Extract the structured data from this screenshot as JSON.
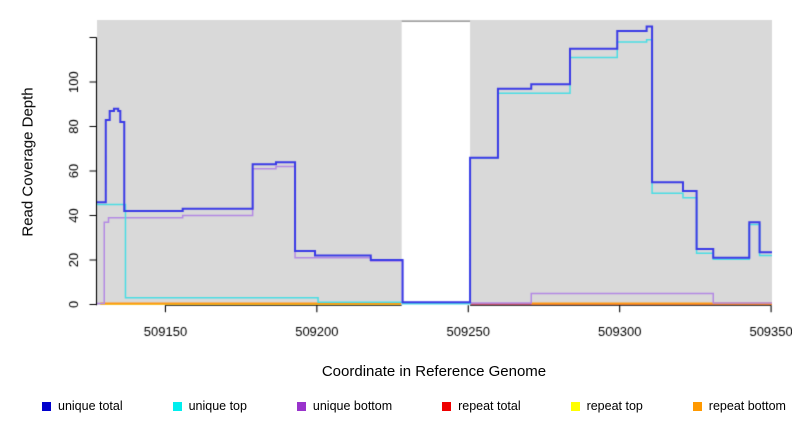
{
  "chart_data": {
    "type": "line",
    "subtype": "step-coverage",
    "title": "",
    "xlabel": "Coordinate in Reference Genome",
    "ylabel": "Read Coverage Depth",
    "x_range": [
      509127.4,
      509350.3
    ],
    "y_range": [
      0,
      127.9
    ],
    "x_ticks": [
      509150,
      509200,
      509250,
      509300,
      509350
    ],
    "x_tick_labels": [
      "509150",
      "509200",
      "509250",
      "509300",
      "509350"
    ],
    "y_ticks_labeled": [
      0,
      20,
      40,
      60,
      80,
      100
    ],
    "y_tick_labels": [
      "0",
      "20",
      "40",
      "60",
      "80",
      "100"
    ],
    "y_ticks_unlabeled": [
      120
    ],
    "grid": false,
    "plot_background": "#d9d9d9",
    "masked_gap": {
      "x_start": 509228.0,
      "x_end": 509250.6,
      "fill": "#ffffff",
      "top_line_color": "#a0a0a0"
    },
    "legend_position": "bottom",
    "series": [
      {
        "name": "repeat top",
        "color": "#f2e600",
        "line_width": 1.5,
        "points": [
          [
            509128.5,
            0.2
          ],
          [
            509227.8,
            null
          ],
          [
            509270.8,
            0.2
          ],
          [
            509350.3,
            0.2
          ]
        ]
      },
      {
        "name": "repeat total",
        "color": "#cc3355",
        "line_width": 1.5,
        "points": [
          [
            509250.6,
            0.2
          ],
          [
            509350.3,
            0.2
          ]
        ]
      },
      {
        "name": "repeat bottom",
        "color": "#ff9815",
        "line_width": 2,
        "points": [
          [
            509128.5,
            0.4
          ],
          [
            509227.8,
            null
          ],
          [
            509270.8,
            0.4
          ],
          [
            509350.3,
            0.4
          ]
        ]
      },
      {
        "name": "unique bottom",
        "color": "#b489e4",
        "line_width": 1.5,
        "points": [
          [
            509127.4,
            0.5
          ],
          [
            509129.8,
            37
          ],
          [
            509131.2,
            39
          ],
          [
            509155.7,
            40
          ],
          [
            509178.8,
            61
          ],
          [
            509186.5,
            62
          ],
          [
            509192.8,
            21
          ],
          [
            509217.8,
            19.5
          ],
          [
            509228.3,
            0.7
          ],
          [
            509270.8,
            5
          ],
          [
            509330.9,
            0.7
          ],
          [
            509350.3,
            0.7
          ]
        ]
      },
      {
        "name": "unique top",
        "color": "#4adde4",
        "line_width": 1.5,
        "points": [
          [
            509127.4,
            45
          ],
          [
            509136.8,
            3
          ],
          [
            509200.4,
            1
          ],
          [
            509228.3,
            0.3
          ],
          [
            509250.6,
            66
          ],
          [
            509259.8,
            95
          ],
          [
            509283.6,
            111
          ],
          [
            509299.2,
            118
          ],
          [
            509308.9,
            119
          ],
          [
            509310.7,
            50
          ],
          [
            509320.9,
            48
          ],
          [
            509325.4,
            23
          ],
          [
            509330.9,
            20.3
          ],
          [
            509342.8,
            36
          ],
          [
            509346.2,
            22
          ],
          [
            509350.3,
            22
          ]
        ]
      },
      {
        "name": "unique total",
        "color": "#3a3ae6",
        "line_width": 2,
        "points": [
          [
            509127.4,
            46
          ],
          [
            509130.3,
            83
          ],
          [
            509131.6,
            87
          ],
          [
            509133.0,
            88
          ],
          [
            509134.4,
            87
          ],
          [
            509135.1,
            82
          ],
          [
            509136.4,
            42
          ],
          [
            509155.7,
            43
          ],
          [
            509178.8,
            63
          ],
          [
            509186.5,
            64
          ],
          [
            509192.8,
            24
          ],
          [
            509199.4,
            22
          ],
          [
            509217.8,
            20
          ],
          [
            509228.3,
            1
          ],
          [
            509250.6,
            66
          ],
          [
            509259.8,
            97
          ],
          [
            509270.8,
            99
          ],
          [
            509283.6,
            115
          ],
          [
            509299.2,
            123
          ],
          [
            509308.9,
            125
          ],
          [
            509310.7,
            55
          ],
          [
            509320.9,
            51
          ],
          [
            509325.4,
            25
          ],
          [
            509330.9,
            21
          ],
          [
            509342.8,
            37
          ],
          [
            509346.2,
            23.5
          ],
          [
            509350.3,
            23.5
          ]
        ]
      }
    ]
  },
  "legend": {
    "items": [
      {
        "label": "unique total",
        "color": "#0000cc"
      },
      {
        "label": "unique top",
        "color": "#00eeee"
      },
      {
        "label": "unique bottom",
        "color": "#9933cc"
      },
      {
        "label": "repeat total",
        "color": "#ee0000"
      },
      {
        "label": "repeat top",
        "color": "#ffff00"
      },
      {
        "label": "repeat bottom",
        "color": "#ff9900"
      }
    ]
  }
}
